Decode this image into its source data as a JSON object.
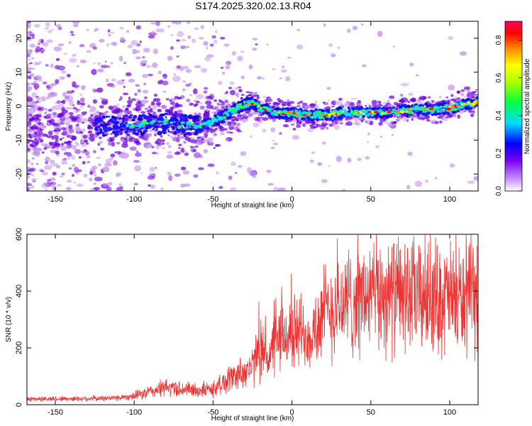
{
  "title": "S174.2025.320.02.13.R04",
  "chart_data": [
    {
      "type": "heatmap",
      "xlabel": "Height of straight line (km)",
      "ylabel": "Frequency (Hz)",
      "xlim": [
        -168,
        118
      ],
      "ylim": [
        -25,
        25
      ],
      "x_ticks": [
        -150,
        -100,
        -50,
        0,
        50,
        100
      ],
      "y_ticks": [
        -20,
        -10,
        0,
        10,
        20
      ],
      "ridge": {
        "x": [
          -168,
          -140,
          -120,
          -100,
          -90,
          -80,
          -70,
          -60,
          -50,
          -40,
          -30,
          -25,
          -20,
          -10,
          0,
          10,
          20,
          30,
          40,
          50,
          60,
          70,
          80,
          90,
          100,
          110,
          118
        ],
        "freq": [
          -7,
          -6.5,
          -6,
          -5.5,
          -5,
          -5,
          -5.5,
          -6,
          -4.5,
          -2,
          0.5,
          1,
          -0.5,
          -2,
          -2,
          -2.5,
          -2.5,
          -2,
          -2,
          -2,
          -2,
          -1.5,
          -1,
          -1,
          -0.5,
          0.5,
          1
        ]
      },
      "colorbar": {
        "label": "Normalized spectral amplitude",
        "range": [
          0.0,
          0.9
        ],
        "ticks": [
          "0.0",
          "0.2",
          "0.4",
          "0.6",
          "0.8"
        ]
      }
    },
    {
      "type": "line",
      "xlabel": "Height of straight line (km)",
      "ylabel": "SNR (10 * v/v)",
      "xlim": [
        -168,
        118
      ],
      "ylim": [
        0,
        600
      ],
      "x_ticks": [
        -150,
        -100,
        -50,
        0,
        50,
        100
      ],
      "y_ticks": [
        0,
        200,
        400,
        600
      ],
      "color": "#ee3333",
      "envelope": {
        "x": [
          -168,
          -120,
          -110,
          -100,
          -90,
          -80,
          -70,
          -60,
          -50,
          -40,
          -30,
          -25,
          -22,
          -18,
          -15,
          -10,
          -5,
          0,
          5,
          10,
          15,
          20,
          30,
          40,
          50,
          60,
          70,
          80,
          90,
          100,
          110,
          118
        ],
        "y": [
          20,
          22,
          25,
          30,
          45,
          60,
          55,
          50,
          55,
          90,
          120,
          130,
          180,
          200,
          160,
          220,
          240,
          250,
          260,
          250,
          270,
          320,
          350,
          370,
          380,
          390,
          385,
          380,
          380,
          375,
          370,
          380
        ]
      }
    }
  ]
}
